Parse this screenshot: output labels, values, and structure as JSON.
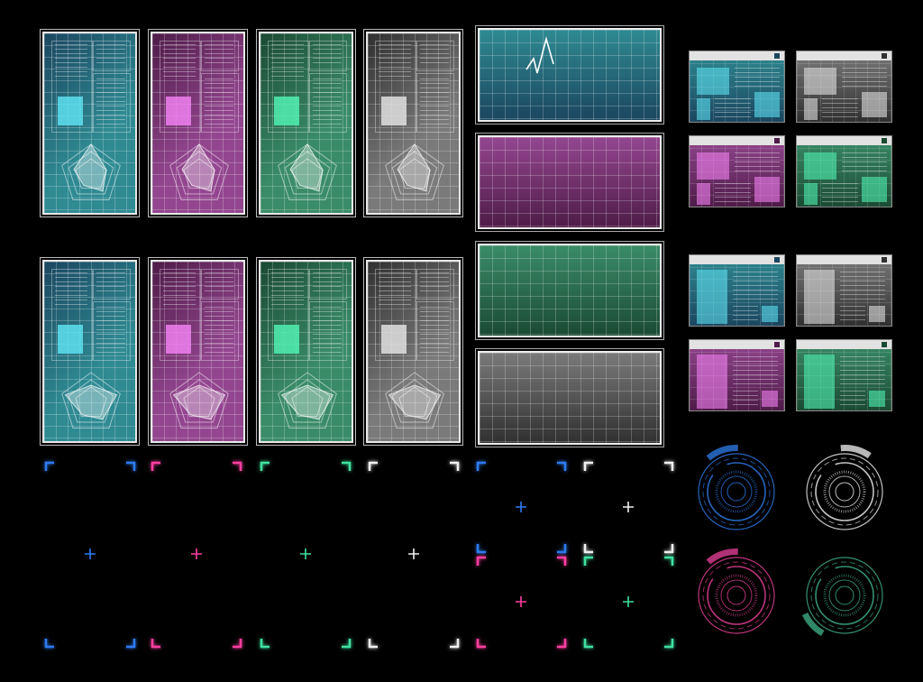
{
  "palette": {
    "cyan": {
      "top": "#2f8a92",
      "bottom": "#1b4660",
      "accent": "#5ee0f0",
      "bracket": "#2e7cf0"
    },
    "magenta": {
      "top": "#93468f",
      "bottom": "#4e1c48",
      "accent": "#f080f0",
      "bracket": "#ff3fa0"
    },
    "green": {
      "top": "#3a8c68",
      "bottom": "#1b4a33",
      "accent": "#50f0b0",
      "bracket": "#3fe0a0"
    },
    "gray": {
      "top": "#7a7a7a",
      "bottom": "#303030",
      "accent": "#e0e0e0",
      "bracket": "#f0f0f0"
    }
  },
  "tall_panels": [
    "cyan",
    "magenta",
    "green",
    "gray",
    "cyan",
    "magenta",
    "green",
    "gray"
  ],
  "wide_panels": [
    "cyan",
    "magenta",
    "green",
    "gray"
  ],
  "windows": [
    "cyan",
    "gray",
    "magenta",
    "green",
    "cyan",
    "gray",
    "magenta",
    "green"
  ],
  "bracket_frames": [
    "cyan",
    "magenta",
    "green",
    "gray"
  ],
  "small_frames": [
    "cyan",
    "gray",
    "magenta",
    "green"
  ],
  "dials": [
    {
      "color": "#2a6fd0",
      "tab": "top-left"
    },
    {
      "color": "#d8d8d8",
      "tab": "top"
    },
    {
      "color": "#d03a8a",
      "tab": "top-left"
    },
    {
      "color": "#3aa07a",
      "tab": "bottom-left"
    }
  ]
}
